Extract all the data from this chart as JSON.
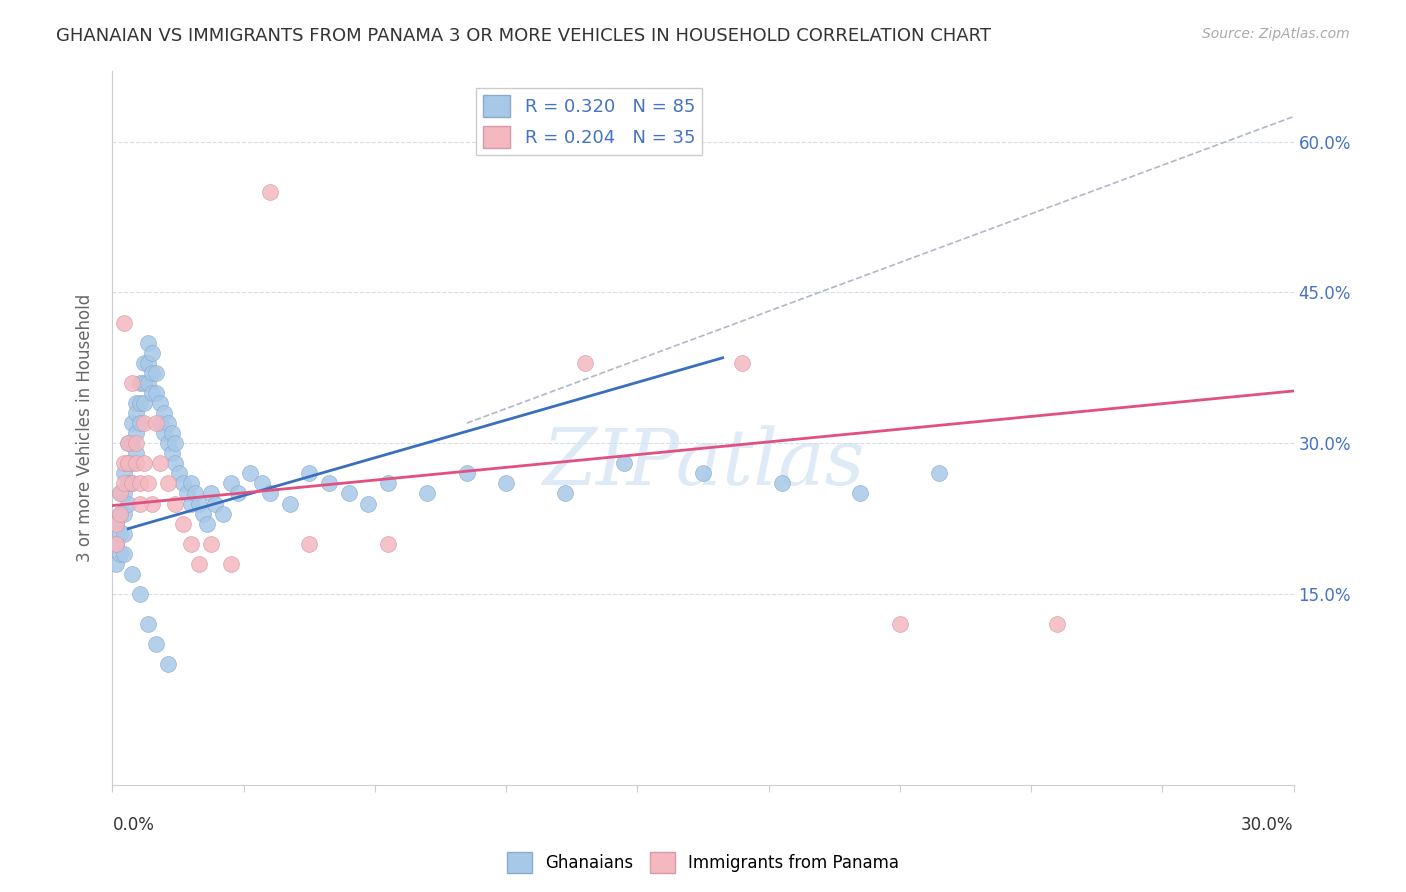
{
  "title": "GHANAIAN VS IMMIGRANTS FROM PANAMA 3 OR MORE VEHICLES IN HOUSEHOLD CORRELATION CHART",
  "source": "Source: ZipAtlas.com",
  "ylabel": "3 or more Vehicles in Household",
  "y_tick_values": [
    0.15,
    0.3,
    0.45,
    0.6
  ],
  "y_tick_labels": [
    "15.0%",
    "30.0%",
    "45.0%",
    "60.0%"
  ],
  "x_lim": [
    0.0,
    0.3
  ],
  "y_lim": [
    -0.04,
    0.67
  ],
  "legend_blue_R": "R = 0.320",
  "legend_blue_N": "N = 85",
  "legend_pink_R": "R = 0.204",
  "legend_pink_N": "N = 35",
  "blue_scatter_color": "#a8c8e8",
  "pink_scatter_color": "#f4b8c0",
  "blue_line_color": "#3a6fbd",
  "pink_line_color": "#e05080",
  "dashed_line_color": "#b0b8c8",
  "grid_color": "#d8dce8",
  "watermark": "ZIPatlas",
  "watermark_color": "#c8dff0",
  "blue_line_x": [
    0.004,
    0.155
  ],
  "blue_line_y": [
    0.215,
    0.385
  ],
  "pink_line_x": [
    0.0,
    0.3
  ],
  "pink_line_y": [
    0.238,
    0.352
  ],
  "dash_line_x": [
    0.09,
    0.3
  ],
  "dash_line_y": [
    0.32,
    0.625
  ],
  "blue_x": [
    0.001,
    0.001,
    0.001,
    0.002,
    0.002,
    0.002,
    0.002,
    0.003,
    0.003,
    0.003,
    0.003,
    0.003,
    0.004,
    0.004,
    0.004,
    0.004,
    0.005,
    0.005,
    0.005,
    0.005,
    0.006,
    0.006,
    0.006,
    0.006,
    0.007,
    0.007,
    0.007,
    0.008,
    0.008,
    0.008,
    0.009,
    0.009,
    0.009,
    0.01,
    0.01,
    0.01,
    0.011,
    0.011,
    0.012,
    0.012,
    0.013,
    0.013,
    0.014,
    0.014,
    0.015,
    0.015,
    0.016,
    0.016,
    0.017,
    0.018,
    0.019,
    0.02,
    0.02,
    0.021,
    0.022,
    0.023,
    0.024,
    0.025,
    0.026,
    0.028,
    0.03,
    0.032,
    0.035,
    0.038,
    0.04,
    0.045,
    0.05,
    0.055,
    0.06,
    0.065,
    0.07,
    0.08,
    0.09,
    0.1,
    0.115,
    0.13,
    0.15,
    0.17,
    0.19,
    0.21,
    0.005,
    0.007,
    0.009,
    0.011,
    0.014
  ],
  "blue_y": [
    0.22,
    0.2,
    0.18,
    0.25,
    0.23,
    0.21,
    0.19,
    0.27,
    0.25,
    0.23,
    0.21,
    0.19,
    0.3,
    0.28,
    0.26,
    0.24,
    0.32,
    0.3,
    0.28,
    0.26,
    0.34,
    0.33,
    0.31,
    0.29,
    0.36,
    0.34,
    0.32,
    0.38,
    0.36,
    0.34,
    0.4,
    0.38,
    0.36,
    0.39,
    0.37,
    0.35,
    0.37,
    0.35,
    0.34,
    0.32,
    0.33,
    0.31,
    0.32,
    0.3,
    0.31,
    0.29,
    0.3,
    0.28,
    0.27,
    0.26,
    0.25,
    0.26,
    0.24,
    0.25,
    0.24,
    0.23,
    0.22,
    0.25,
    0.24,
    0.23,
    0.26,
    0.25,
    0.27,
    0.26,
    0.25,
    0.24,
    0.27,
    0.26,
    0.25,
    0.24,
    0.26,
    0.25,
    0.27,
    0.26,
    0.25,
    0.28,
    0.27,
    0.26,
    0.25,
    0.27,
    0.17,
    0.15,
    0.12,
    0.1,
    0.08
  ],
  "pink_x": [
    0.001,
    0.001,
    0.002,
    0.002,
    0.003,
    0.003,
    0.004,
    0.004,
    0.005,
    0.006,
    0.006,
    0.007,
    0.008,
    0.008,
    0.009,
    0.01,
    0.011,
    0.012,
    0.014,
    0.016,
    0.018,
    0.02,
    0.022,
    0.025,
    0.03,
    0.04,
    0.05,
    0.07,
    0.12,
    0.16,
    0.2,
    0.24,
    0.005,
    0.003,
    0.007
  ],
  "pink_y": [
    0.22,
    0.2,
    0.25,
    0.23,
    0.28,
    0.26,
    0.3,
    0.28,
    0.26,
    0.3,
    0.28,
    0.26,
    0.32,
    0.28,
    0.26,
    0.24,
    0.32,
    0.28,
    0.26,
    0.24,
    0.22,
    0.2,
    0.18,
    0.2,
    0.18,
    0.55,
    0.2,
    0.2,
    0.38,
    0.38,
    0.12,
    0.12,
    0.36,
    0.42,
    0.24
  ]
}
